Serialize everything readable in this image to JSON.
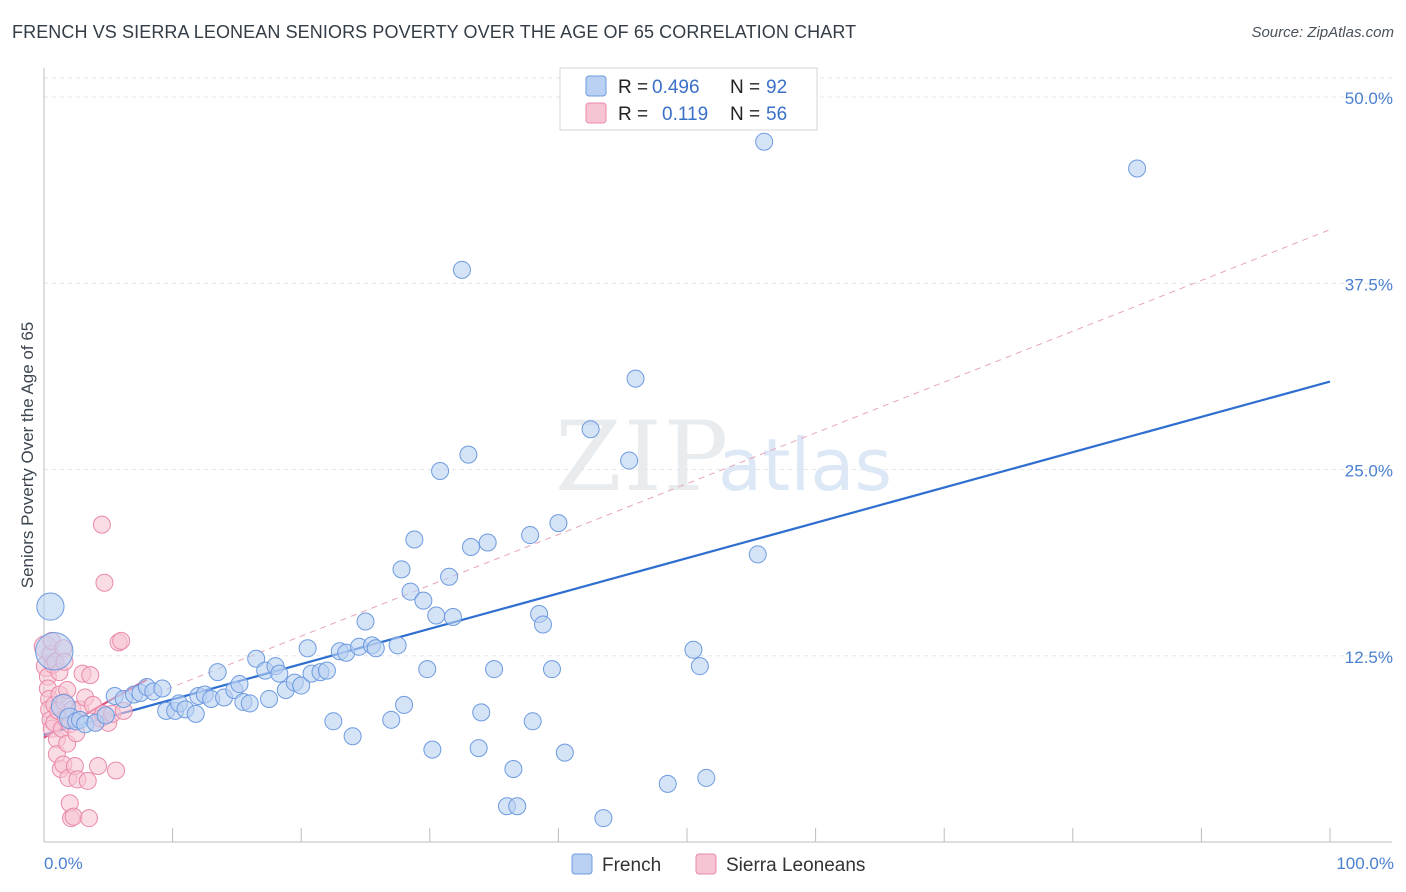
{
  "header": {
    "title": "FRENCH VS SIERRA LEONEAN SENIORS POVERTY OVER THE AGE OF 65 CORRELATION CHART",
    "source": "Source: ZipAtlas.com"
  },
  "watermark": {
    "zip": "ZIP",
    "atlas": "atlas"
  },
  "colors": {
    "french_fill": "#b9d0f2",
    "french_stroke": "#6d9be0",
    "french_line": "#2f6fd0",
    "sierra_fill": "#f7c4d4",
    "sierra_stroke": "#ea8aa8",
    "sierra_line": "#e04f80",
    "grid": "#e3e6ea",
    "tick_text": "#4a7fd0"
  },
  "legend": {
    "rows": [
      {
        "r_label": "R =",
        "r_value": "0.496",
        "n_label": "N =",
        "n_value": "92"
      },
      {
        "r_label": "R =",
        "r_value": "0.119",
        "n_label": "N =",
        "n_value": "56"
      }
    ]
  },
  "bottom_legend": {
    "french": "French",
    "sierra": "Sierra Leoneans"
  },
  "chart_data": {
    "type": "scatter",
    "title": "FRENCH VS SIERRA LEONEAN SENIORS POVERTY OVER THE AGE OF 65 CORRELATION CHART",
    "xlabel": "",
    "ylabel": "Seniors Poverty Over the Age of 65",
    "xlim": [
      0,
      100
    ],
    "ylim": [
      0,
      50
    ],
    "x_tick_labels": {
      "left": "0.0%",
      "right": "100.0%"
    },
    "y_ticks": [
      {
        "value": 12.5,
        "label": "12.5%"
      },
      {
        "value": 25.0,
        "label": "25.0%"
      },
      {
        "value": 37.5,
        "label": "37.5%"
      },
      {
        "value": 50.0,
        "label": "50.0%"
      }
    ],
    "series": [
      {
        "name": "French",
        "R": 0.496,
        "N": 92,
        "trend": {
          "x0": 0,
          "y0": 7.2,
          "x1": 100,
          "y1": 30.9
        },
        "points": [
          [
            0.5,
            15.8,
            1.6
          ],
          [
            0.8,
            12.8,
            2.2
          ],
          [
            1.5,
            9.1,
            1.4
          ],
          [
            2.0,
            8.3,
            1.2
          ],
          [
            2.5,
            8.1,
            1.0
          ],
          [
            2.8,
            8.2,
            1.0
          ],
          [
            3.2,
            7.9,
            1.0
          ],
          [
            4.0,
            8.0,
            1.0
          ],
          [
            4.8,
            8.5,
            1.0
          ],
          [
            5.5,
            9.8,
            1.0
          ],
          [
            6.2,
            9.6,
            1.0
          ],
          [
            7.0,
            9.9,
            1.0
          ],
          [
            7.5,
            10.0,
            1.0
          ],
          [
            8.0,
            10.4,
            1.0
          ],
          [
            8.5,
            10.1,
            1.0
          ],
          [
            9.2,
            10.3,
            1.0
          ],
          [
            9.5,
            8.8,
            1.0
          ],
          [
            10.2,
            8.8,
            1.0
          ],
          [
            10.5,
            9.3,
            1.0
          ],
          [
            11.0,
            8.9,
            1.0
          ],
          [
            11.8,
            8.6,
            1.0
          ],
          [
            12.0,
            9.8,
            1.0
          ],
          [
            12.5,
            9.9,
            1.0
          ],
          [
            13.0,
            9.6,
            1.0
          ],
          [
            13.5,
            11.4,
            1.0
          ],
          [
            14.0,
            9.7,
            1.0
          ],
          [
            14.8,
            10.2,
            1.0
          ],
          [
            15.2,
            10.6,
            1.0
          ],
          [
            15.5,
            9.4,
            1.0
          ],
          [
            16.0,
            9.3,
            1.0
          ],
          [
            16.5,
            12.3,
            1.0
          ],
          [
            17.2,
            11.5,
            1.0
          ],
          [
            17.5,
            9.6,
            1.0
          ],
          [
            18.0,
            11.8,
            1.0
          ],
          [
            18.3,
            11.3,
            1.0
          ],
          [
            18.8,
            10.2,
            1.0
          ],
          [
            19.5,
            10.7,
            1.0
          ],
          [
            20.0,
            10.5,
            1.0
          ],
          [
            20.5,
            13.0,
            1.0
          ],
          [
            20.8,
            11.3,
            1.0
          ],
          [
            21.5,
            11.4,
            1.0
          ],
          [
            22.0,
            11.5,
            1.0
          ],
          [
            22.5,
            8.1,
            1.0
          ],
          [
            23.0,
            12.8,
            1.0
          ],
          [
            23.5,
            12.7,
            1.0
          ],
          [
            24.0,
            7.1,
            1.0
          ],
          [
            24.5,
            13.1,
            1.0
          ],
          [
            25.0,
            14.8,
            1.0
          ],
          [
            25.5,
            13.2,
            1.0
          ],
          [
            25.8,
            13.0,
            1.0
          ],
          [
            27.0,
            8.2,
            1.0
          ],
          [
            27.5,
            13.2,
            1.0
          ],
          [
            28.0,
            9.2,
            1.0
          ],
          [
            27.8,
            18.3,
            1.0
          ],
          [
            28.5,
            16.8,
            1.0
          ],
          [
            28.8,
            20.3,
            1.0
          ],
          [
            29.5,
            16.2,
            1.0
          ],
          [
            29.8,
            11.6,
            1.0
          ],
          [
            30.2,
            6.2,
            1.0
          ],
          [
            30.5,
            15.2,
            1.0
          ],
          [
            30.8,
            24.9,
            1.0
          ],
          [
            31.5,
            17.8,
            1.0
          ],
          [
            31.8,
            15.1,
            1.0
          ],
          [
            32.5,
            38.4,
            1.0
          ],
          [
            33.0,
            26.0,
            1.0
          ],
          [
            33.2,
            19.8,
            1.0
          ],
          [
            33.8,
            6.3,
            1.0
          ],
          [
            34.0,
            8.7,
            1.0
          ],
          [
            34.5,
            20.1,
            1.0
          ],
          [
            35.0,
            11.6,
            1.0
          ],
          [
            36.0,
            2.4,
            1.0
          ],
          [
            36.5,
            4.9,
            1.0
          ],
          [
            36.8,
            2.4,
            1.0
          ],
          [
            37.8,
            20.6,
            1.0
          ],
          [
            38.0,
            8.1,
            1.0
          ],
          [
            38.5,
            15.3,
            1.0
          ],
          [
            38.8,
            14.6,
            1.0
          ],
          [
            39.5,
            11.6,
            1.0
          ],
          [
            40.0,
            21.4,
            1.0
          ],
          [
            40.5,
            6.0,
            1.0
          ],
          [
            42.5,
            27.7,
            1.0
          ],
          [
            43.5,
            1.6,
            1.0
          ],
          [
            45.5,
            25.6,
            1.0
          ],
          [
            46.0,
            31.1,
            1.0
          ],
          [
            48.5,
            3.9,
            1.0
          ],
          [
            50.5,
            12.9,
            1.0
          ],
          [
            51.0,
            11.8,
            1.0
          ],
          [
            51.5,
            4.3,
            1.0
          ],
          [
            55.5,
            19.3,
            1.0
          ],
          [
            56.0,
            47.0,
            1.0
          ],
          [
            85.0,
            45.2,
            1.0
          ]
        ]
      },
      {
        "name": "Sierra Leoneans",
        "R": 0.119,
        "N": 56,
        "trend": {
          "x0": 0,
          "y0": 7.0,
          "x1": 8.0,
          "y1": 10.9,
          "dashed_x1": 100,
          "dashed_y1": 41.1
        },
        "points": [
          [
            0.1,
            13.1,
            1.3
          ],
          [
            0.2,
            11.8,
            1.2
          ],
          [
            0.3,
            11.1,
            1.0
          ],
          [
            0.3,
            10.3,
            1.0
          ],
          [
            0.4,
            9.6,
            1.0
          ],
          [
            0.4,
            8.9,
            1.0
          ],
          [
            0.5,
            12.6,
            1.0
          ],
          [
            0.5,
            8.2,
            1.0
          ],
          [
            0.6,
            7.6,
            1.0
          ],
          [
            0.6,
            13.5,
            1.0
          ],
          [
            0.7,
            11.9,
            1.0
          ],
          [
            0.8,
            9.2,
            1.0
          ],
          [
            0.8,
            8.0,
            1.0
          ],
          [
            0.9,
            12.1,
            1.0
          ],
          [
            1.0,
            6.9,
            1.0
          ],
          [
            1.0,
            5.9,
            1.0
          ],
          [
            1.1,
            8.8,
            1.0
          ],
          [
            1.2,
            9.9,
            1.0
          ],
          [
            1.2,
            11.4,
            1.0
          ],
          [
            1.3,
            4.9,
            1.0
          ],
          [
            1.4,
            7.6,
            1.0
          ],
          [
            1.5,
            5.2,
            1.0
          ],
          [
            1.5,
            13.0,
            1.0
          ],
          [
            1.6,
            9.4,
            1.0
          ],
          [
            1.6,
            12.1,
            1.0
          ],
          [
            1.7,
            8.3,
            1.0
          ],
          [
            1.8,
            6.6,
            1.0
          ],
          [
            1.8,
            10.2,
            1.0
          ],
          [
            1.9,
            4.3,
            1.0
          ],
          [
            2.0,
            7.9,
            1.0
          ],
          [
            2.0,
            2.6,
            1.0
          ],
          [
            2.1,
            1.6,
            1.0
          ],
          [
            2.2,
            8.9,
            1.0
          ],
          [
            2.3,
            1.7,
            1.0
          ],
          [
            2.4,
            5.1,
            1.0
          ],
          [
            2.5,
            7.3,
            1.0
          ],
          [
            2.6,
            4.2,
            1.0
          ],
          [
            2.8,
            8.9,
            1.0
          ],
          [
            3.0,
            11.3,
            1.0
          ],
          [
            3.2,
            9.7,
            1.0
          ],
          [
            3.4,
            4.1,
            1.0
          ],
          [
            3.5,
            1.6,
            1.0
          ],
          [
            3.6,
            11.2,
            1.0
          ],
          [
            3.8,
            9.2,
            1.0
          ],
          [
            4.0,
            8.0,
            1.0
          ],
          [
            4.2,
            5.1,
            1.0
          ],
          [
            4.4,
            8.3,
            1.0
          ],
          [
            4.6,
            8.6,
            1.0
          ],
          [
            4.5,
            21.3,
            1.0
          ],
          [
            4.7,
            17.4,
            1.0
          ],
          [
            5.0,
            8.0,
            1.0
          ],
          [
            5.3,
            8.6,
            1.0
          ],
          [
            5.6,
            4.8,
            1.0
          ],
          [
            5.8,
            13.4,
            1.0
          ],
          [
            6.0,
            13.5,
            1.0
          ],
          [
            6.2,
            8.8,
            1.0
          ]
        ]
      }
    ]
  }
}
